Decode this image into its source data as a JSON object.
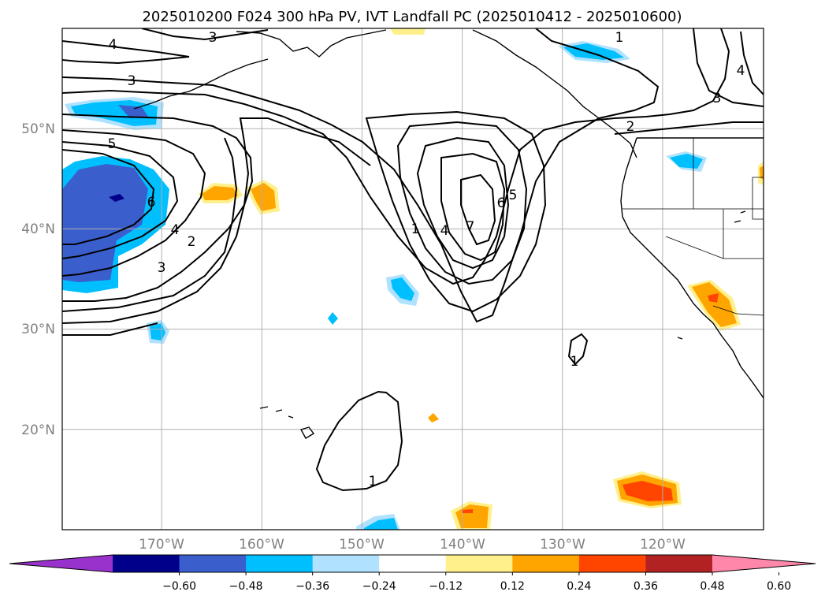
{
  "title": "2025010200 F024 300 hPa PV, IVT Landfall PC (2025010412 - 2025010600)",
  "chart_data": {
    "type": "map",
    "title": "2025010200 F024 300 hPa PV, IVT Landfall PC (2025010412 - 2025010600)",
    "projection": "platecarree",
    "extent": {
      "lon": [
        -180,
        -110
      ],
      "lat": [
        10,
        60
      ]
    },
    "lat_ticks": [
      {
        "value": 50,
        "label": "50°N"
      },
      {
        "value": 40,
        "label": "40°N"
      },
      {
        "value": 30,
        "label": "30°N"
      },
      {
        "value": 20,
        "label": "20°N"
      }
    ],
    "lon_ticks": [
      {
        "value": -170,
        "label": "170°W"
      },
      {
        "value": -160,
        "label": "160°W"
      },
      {
        "value": -150,
        "label": "150°W"
      },
      {
        "value": -140,
        "label": "140°W"
      },
      {
        "value": -130,
        "label": "130°W"
      },
      {
        "value": -120,
        "label": "120°W"
      }
    ],
    "grid": true,
    "contours": {
      "field": "300 hPa PV",
      "color": "#000000",
      "labels": [
        "4",
        "3",
        "3",
        "5",
        "6",
        "4",
        "2",
        "3",
        "1",
        "1",
        "4",
        "7",
        "6",
        "5",
        "2",
        "3",
        "4",
        "1",
        "1"
      ]
    },
    "filled": {
      "field": "IVT Landfall PC",
      "colorbar": {
        "orientation": "horizontal",
        "extend": "both",
        "colors": [
          "#9932cc",
          "#00008b",
          "#3a5fcd",
          "#00bfff",
          "#b0e2ff",
          "#ffffff",
          "#fff08c",
          "#ffa500",
          "#ff4500",
          "#b22222",
          "#ff88aa"
        ],
        "tick_labels": [
          "−0.60",
          "−0.48",
          "−0.36",
          "−0.24",
          "−0.12",
          "0.12",
          "0.24",
          "0.36",
          "0.48",
          "0.60"
        ]
      }
    }
  }
}
